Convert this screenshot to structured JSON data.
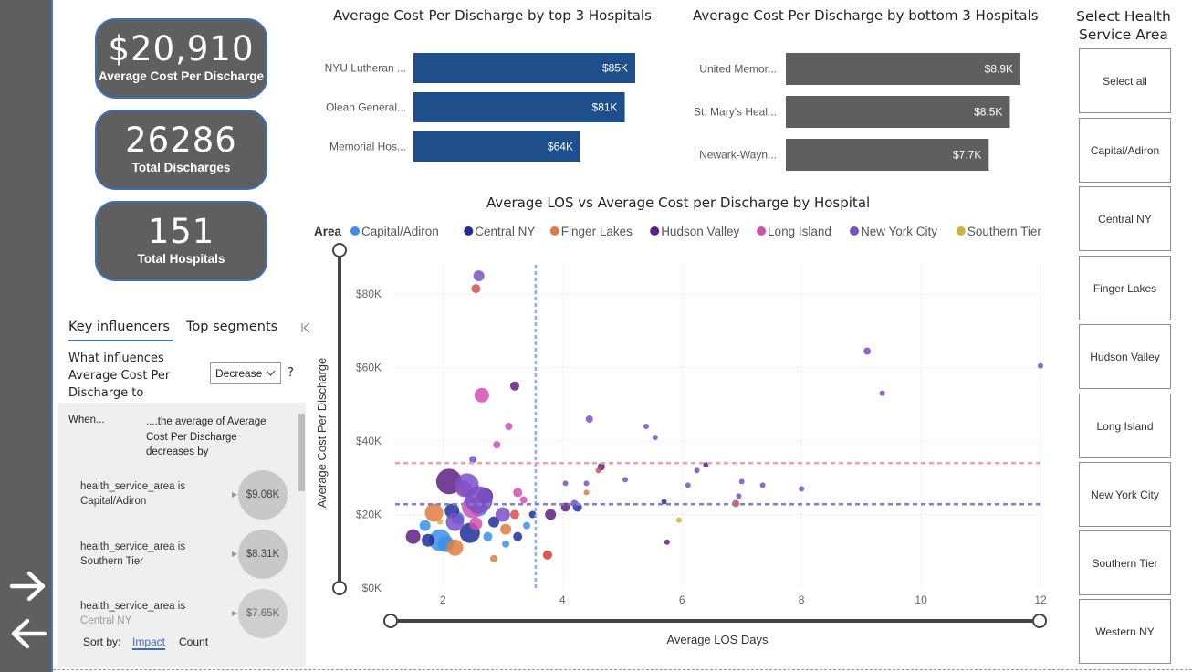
{
  "kpis": [
    {
      "value": "$20,910",
      "label": "Average Cost Per Discharge"
    },
    {
      "value": "26286",
      "label": "Total Discharges"
    },
    {
      "value": "151",
      "label": "Total Hospitals"
    }
  ],
  "top_chart": {
    "title": "Average Cost Per Discharge by top 3 Hospitals",
    "color": "#1f4e8c",
    "bars": [
      {
        "label": "NYU Lutheran ...",
        "value": 85,
        "display": "$85K"
      },
      {
        "label": "Olean General...",
        "value": 81,
        "display": "$81K"
      },
      {
        "label": "Memorial Hos...",
        "value": 64,
        "display": "$64K"
      }
    ]
  },
  "bottom_chart": {
    "title": "Average Cost Per Discharge by bottom 3 Hospitals",
    "color": "#5f5f5f",
    "bars": [
      {
        "label": "United Memor...",
        "value": 8.9,
        "display": "$8.9K"
      },
      {
        "label": "St. Mary's Heal...",
        "value": 8.5,
        "display": "$8.5K"
      },
      {
        "label": "Newark-Wayn...",
        "value": 7.7,
        "display": "$7.7K"
      }
    ]
  },
  "scatter": {
    "title": "Average LOS vs Average Cost per Discharge by Hospital",
    "legend_title": "Area",
    "xlabel": "Average LOS Days",
    "ylabel": "Average Cost Per Discharge",
    "y_ticks": [
      {
        "v": 0,
        "t": "$0K"
      },
      {
        "v": 20000,
        "t": "$20K"
      },
      {
        "v": 40000,
        "t": "$40K"
      },
      {
        "v": 60000,
        "t": "$60K"
      },
      {
        "v": 80000,
        "t": "$80K"
      }
    ],
    "x_ticks": [
      {
        "v": 2,
        "t": "2"
      },
      {
        "v": 4,
        "t": "4"
      },
      {
        "v": 6,
        "t": "6"
      },
      {
        "v": 8,
        "t": "8"
      },
      {
        "v": 10,
        "t": "10"
      },
      {
        "v": 12,
        "t": "12"
      }
    ]
  },
  "chart_data": {
    "type": "scatter",
    "xlim": [
      1.2,
      12
    ],
    "ylim": [
      0,
      88000
    ],
    "grid": true,
    "legend_placement": "top",
    "reference_lines": {
      "x_avg": 3.55,
      "y_avg_1": 34000,
      "y_avg_2": 22800
    },
    "series": [
      {
        "name": "Capital/Adiron",
        "color": "#3c8fe8",
        "points": [
          [
            1.95,
            13000,
            12
          ],
          [
            2.25,
            19000,
            7
          ],
          [
            2.05,
            12000,
            9
          ],
          [
            2.75,
            14000,
            5
          ],
          [
            3.4,
            17000,
            4
          ],
          [
            2.6,
            22000,
            10
          ],
          [
            1.7,
            17000,
            6
          ],
          [
            3.05,
            12000,
            4
          ]
        ]
      },
      {
        "name": "Central NY",
        "color": "#1f2f99",
        "points": [
          [
            2.45,
            15000,
            11
          ],
          [
            2.15,
            21000,
            8
          ],
          [
            3.5,
            20000,
            4
          ],
          [
            4.25,
            22000,
            5
          ],
          [
            2.85,
            18000,
            6
          ],
          [
            1.75,
            13000,
            7
          ],
          [
            3.25,
            14000,
            5
          ],
          [
            5.7,
            23500,
            3
          ]
        ]
      },
      {
        "name": "Finger Lakes",
        "color": "#e07b42",
        "points": [
          [
            1.85,
            20500,
            10
          ],
          [
            2.2,
            11000,
            9
          ],
          [
            2.85,
            8000,
            4
          ],
          [
            4.4,
            26000,
            3
          ],
          [
            3.05,
            16000,
            6
          ],
          [
            3.75,
            9000,
            5
          ]
        ]
      },
      {
        "name": "Hudson Valley",
        "color": "#5f1f85",
        "points": [
          [
            3.2,
            55000,
            5
          ],
          [
            2.1,
            29000,
            14
          ],
          [
            4.65,
            33000,
            4
          ],
          [
            6.4,
            33500,
            3
          ],
          [
            3.8,
            20000,
            6
          ],
          [
            1.5,
            14000,
            8
          ],
          [
            2.7,
            25000,
            9
          ],
          [
            4.05,
            22000,
            5
          ],
          [
            5.75,
            12500,
            3
          ]
        ]
      },
      {
        "name": "Long Island",
        "color": "#d050b0",
        "points": [
          [
            2.65,
            52500,
            8
          ],
          [
            2.5,
            22000,
            12
          ],
          [
            2.9,
            39000,
            4
          ],
          [
            3.1,
            44000,
            4
          ],
          [
            2.35,
            27000,
            9
          ],
          [
            3.25,
            26000,
            5
          ],
          [
            2.55,
            17500,
            7
          ],
          [
            3.35,
            24000,
            4
          ]
        ]
      },
      {
        "name": "New York City",
        "color": "#7a50c7",
        "points": [
          [
            2.6,
            85000,
            6
          ],
          [
            9.1,
            64500,
            4
          ],
          [
            12.0,
            60500,
            3
          ],
          [
            9.35,
            53000,
            3
          ],
          [
            4.45,
            46000,
            4
          ],
          [
            5.4,
            44000,
            3
          ],
          [
            5.55,
            41000,
            3
          ],
          [
            2.5,
            35000,
            4
          ],
          [
            6.25,
            32000,
            3
          ],
          [
            6.1,
            28000,
            3
          ],
          [
            7.35,
            28000,
            3
          ],
          [
            8.0,
            27000,
            3
          ],
          [
            7.0,
            29000,
            3
          ],
          [
            4.05,
            28500,
            3
          ],
          [
            4.4,
            28500,
            3
          ],
          [
            5.05,
            29500,
            3
          ],
          [
            6.95,
            25000,
            3
          ],
          [
            4.2,
            23000,
            4
          ],
          [
            2.4,
            28000,
            13
          ],
          [
            2.6,
            24000,
            15
          ],
          [
            2.2,
            18000,
            10
          ],
          [
            3.0,
            20000,
            8
          ]
        ]
      },
      {
        "name": "Southern Tier",
        "color": "#d4b13a",
        "points": [
          [
            5.95,
            18500,
            3
          ],
          [
            1.95,
            18000,
            3
          ]
        ]
      },
      {
        "name": "Western NY",
        "color": "#d64d4d",
        "points": [
          [
            2.55,
            81500,
            5
          ],
          [
            3.75,
            9000,
            5
          ],
          [
            6.9,
            23000,
            4
          ],
          [
            4.6,
            32000,
            3
          ],
          [
            3.2,
            20000,
            5
          ]
        ]
      }
    ]
  },
  "key_influencers": {
    "tab_key": "Key influencers",
    "tab_top": "Top segments",
    "question": "What influences Average Cost Per Discharge to",
    "dropdown_value": "Decrease",
    "help": "?",
    "when": "When...",
    "description": "....the average of Average Cost Per Discharge decreases by",
    "items": [
      {
        "line1": "health_service_area is",
        "line2": "Capital/Adiron",
        "value": "$9.08K"
      },
      {
        "line1": "health_service_area is",
        "line2": "Southern Tier",
        "value": "$8.31K"
      },
      {
        "line1": "health_service_area is",
        "line2": "Central NY",
        "value": "$7.65K"
      }
    ],
    "sort_by_label": "Sort by:",
    "sort_impact": "Impact",
    "sort_count": "Count"
  },
  "slicer": {
    "title": "Select Health Service Area",
    "options": [
      "Select all",
      "Capital/Adiron",
      "Central NY",
      "Finger Lakes",
      "Hudson Valley",
      "Long Island",
      "New York City",
      "Southern Tier",
      "Western NY"
    ]
  },
  "nav": {
    "next_icon": "arrow-right-icon",
    "back_icon": "arrow-left-icon"
  }
}
